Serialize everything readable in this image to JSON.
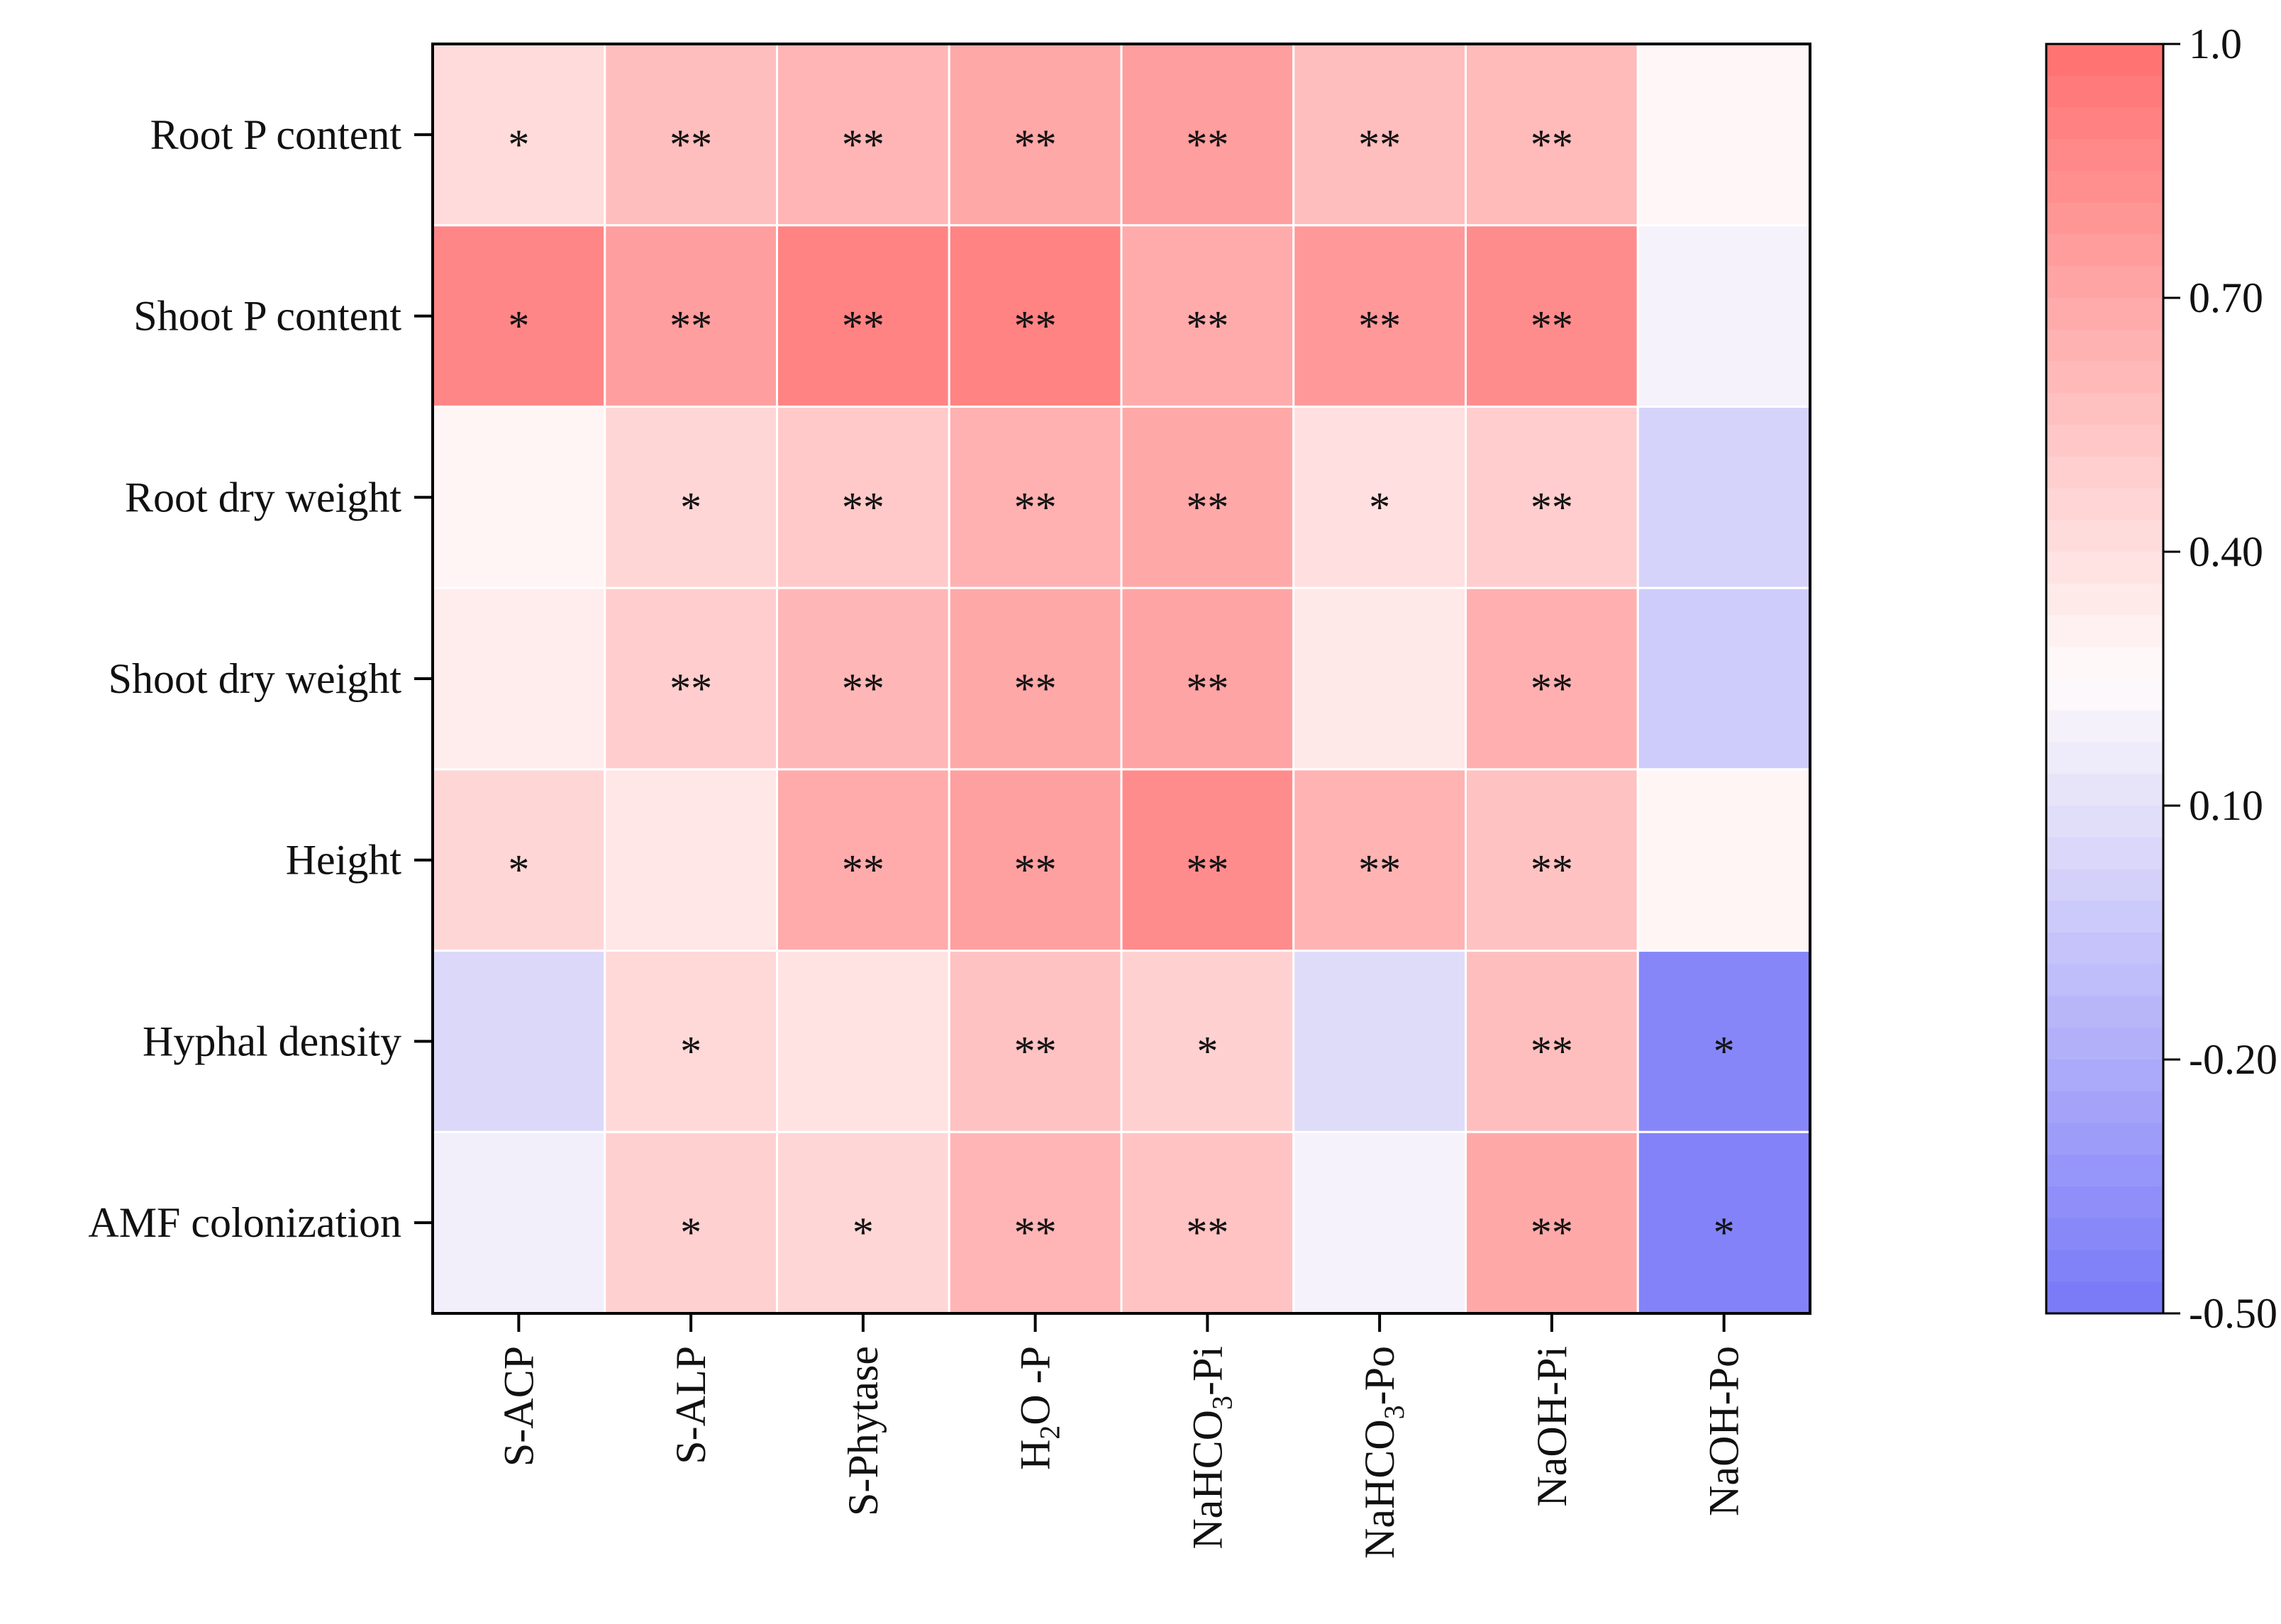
{
  "chart_data": {
    "type": "heatmap",
    "title": "",
    "xlabel": "",
    "ylabel": "",
    "rows": [
      "Root P content",
      "Shoot P content",
      "Root dry weight",
      "Shoot dry weight",
      "Height",
      "Hyphal density",
      "AMF colonization"
    ],
    "columns": [
      {
        "main": "S-ACP"
      },
      {
        "main": "S-ALP"
      },
      {
        "main": "S-Phytase"
      },
      {
        "main": "H",
        "sub": "2",
        "after": "O -P"
      },
      {
        "main": "NaHCO",
        "sub": "3",
        "after": "-Pi"
      },
      {
        "main": "NaHCO",
        "sub": "3",
        "after": "-Po"
      },
      {
        "main": "NaOH-Pi"
      },
      {
        "main": "NaOH-Po"
      }
    ],
    "values": [
      [
        0.42,
        0.58,
        0.63,
        0.7,
        0.75,
        0.58,
        0.6,
        0.27
      ],
      [
        0.88,
        0.75,
        0.9,
        0.9,
        0.68,
        0.78,
        0.85,
        0.2
      ],
      [
        0.28,
        0.45,
        0.52,
        0.65,
        0.7,
        0.4,
        0.5,
        0.02
      ],
      [
        0.33,
        0.5,
        0.62,
        0.7,
        0.72,
        0.35,
        0.66,
        -0.02
      ],
      [
        0.45,
        0.36,
        0.68,
        0.74,
        0.85,
        0.64,
        0.56,
        0.28
      ],
      [
        0.05,
        0.44,
        0.38,
        0.56,
        0.48,
        0.07,
        0.58,
        -0.42
      ],
      [
        0.18,
        0.48,
        0.45,
        0.63,
        0.55,
        0.2,
        0.7,
        -0.44
      ]
    ],
    "significance": [
      [
        "*",
        "**",
        "**",
        "**",
        "**",
        "**",
        "**",
        ""
      ],
      [
        "*",
        "**",
        "**",
        "**",
        "**",
        "**",
        "**",
        ""
      ],
      [
        "",
        "*",
        "**",
        "**",
        "**",
        "*",
        "**",
        ""
      ],
      [
        "",
        "**",
        "**",
        "**",
        "**",
        "",
        "**",
        ""
      ],
      [
        "*",
        "",
        "**",
        "**",
        "**",
        "**",
        "**",
        ""
      ],
      [
        "",
        "*",
        "",
        "**",
        "*",
        "",
        "**",
        "*"
      ],
      [
        "",
        "*",
        "*",
        "**",
        "**",
        "",
        "**",
        "*"
      ]
    ],
    "colorbar": {
      "min": -0.5,
      "max": 1.0,
      "ticks": [
        "1.0",
        "0.70",
        "0.40",
        "0.10",
        "-0.20",
        "-0.50"
      ],
      "tick_values": [
        1.0,
        0.7,
        0.4,
        0.1,
        -0.2,
        -0.5
      ],
      "low_color": "#7878f8",
      "mid_color": "#fffbfb",
      "high_color": "#ff7070",
      "mid_value": 0.25
    },
    "grid_line_color": "#ffffff"
  }
}
